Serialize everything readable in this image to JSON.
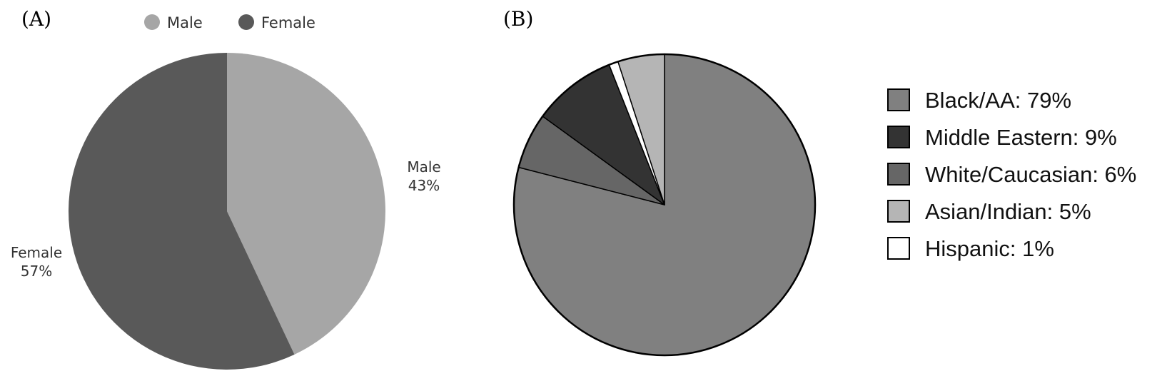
{
  "figure": {
    "panel_a_label": "(A)",
    "panel_b_label": "(B)"
  },
  "chart_data": [
    {
      "type": "pie",
      "title": "",
      "legend_position": "top",
      "legend": [
        "Male",
        "Female"
      ],
      "slices": [
        {
          "label": "Male",
          "value": 43,
          "value_text": "43%",
          "color": "#a6a6a6"
        },
        {
          "label": "Female",
          "value": 57,
          "value_text": "57%",
          "color": "#595959"
        }
      ]
    },
    {
      "type": "pie",
      "title": "",
      "legend_position": "right",
      "legend": [
        "Black/AA: 79%",
        "Middle Eastern: 9%",
        "White/Caucasian: 6%",
        "Asian/Indian: 5%",
        "Hispanic: 1%"
      ],
      "slices": [
        {
          "label": "Black/AA",
          "value": 79,
          "color": "#808080"
        },
        {
          "label": "White/Caucasian",
          "value": 6,
          "color": "#666666"
        },
        {
          "label": "Middle Eastern",
          "value": 9,
          "color": "#333333"
        },
        {
          "label": "Hispanic",
          "value": 1,
          "color": "#ffffff"
        },
        {
          "label": "Asian/Indian",
          "value": 5,
          "color": "#b5b5b5"
        }
      ],
      "legend_colors": [
        "#808080",
        "#333333",
        "#666666",
        "#b5b5b5",
        "#ffffff"
      ]
    }
  ]
}
